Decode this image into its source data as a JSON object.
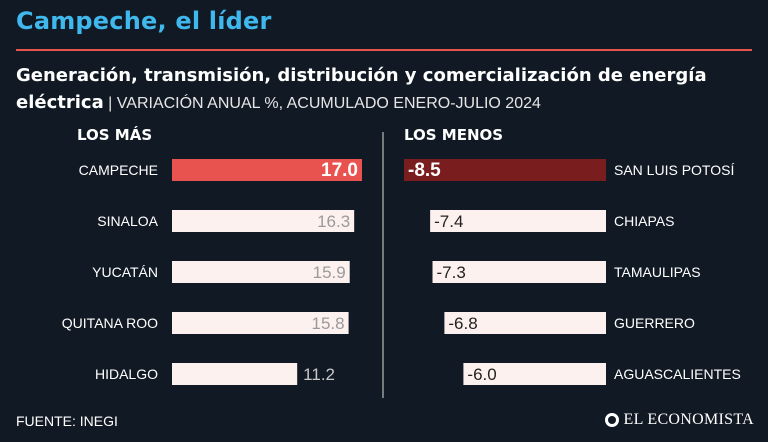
{
  "header": {
    "title": "Campeche, el líder",
    "subtitle_bold": "Generación, transmisión, distribución y comercialización de energía eléctrica",
    "subtitle_light": " | VARIACIÓN ANUAL %, ACUMULADO ENERO-JULIO 2024"
  },
  "footer": {
    "source": "FUENTE: INEGI",
    "brand": "EL ECONOMISTA"
  },
  "colors": {
    "background": "#111a24",
    "title": "#3fb8ee",
    "accent_red": "#e8524f",
    "dark_red": "#7a1d1e",
    "bar_light": "#fdf1ef",
    "divider": "#d9d9d9"
  },
  "chart_data": [
    {
      "type": "bar",
      "section_label": "LOS MÁS",
      "categories": [
        "CAMPECHE",
        "SINALOA",
        "YUCATÁN",
        "QUITANA ROO",
        "HIDALGO"
      ],
      "values": [
        17.0,
        16.3,
        15.9,
        15.8,
        11.2
      ],
      "labels": [
        "17.0",
        "16.3",
        "15.9",
        "15.8",
        "11.2"
      ],
      "highlight_index": 0
    },
    {
      "type": "bar",
      "section_label": "LOS MENOS",
      "categories": [
        "SAN LUIS POTOSÍ",
        "CHIAPAS",
        "TAMAULIPAS",
        "GUERRERO",
        "AGUASCALIENTES"
      ],
      "values": [
        -8.5,
        -7.4,
        -7.3,
        -6.8,
        -6.0
      ],
      "labels": [
        "-8.5",
        "-7.4",
        "-7.3",
        "-6.8",
        "-6.0"
      ],
      "highlight_index": 0
    }
  ]
}
